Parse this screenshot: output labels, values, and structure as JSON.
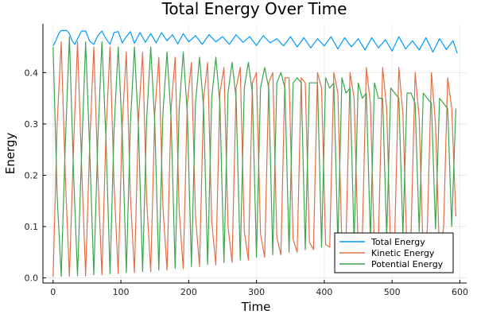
{
  "chart_data": {
    "type": "line",
    "title": "Total Energy Over Time",
    "xlabel": "Time",
    "ylabel": "Energy",
    "xlim": [
      -15,
      610
    ],
    "ylim": [
      -0.01,
      0.495
    ],
    "x_ticks": [
      0,
      100,
      200,
      300,
      400,
      500,
      600
    ],
    "x_tick_labels": [
      "0",
      "100",
      "200",
      "300",
      "400",
      "500",
      "600"
    ],
    "y_ticks": [
      0.0,
      0.1,
      0.2,
      0.3,
      0.4
    ],
    "y_tick_labels": [
      "0.0",
      "0.1",
      "0.2",
      "0.3",
      "0.4"
    ],
    "grid": true,
    "legend_position": "bottom-right",
    "series": [
      {
        "name": "Total Energy",
        "color": "#009AFA",
        "x": [
          0,
          4,
          8,
          12,
          16,
          20,
          24,
          28,
          32,
          36,
          42,
          48,
          54,
          60,
          66,
          72,
          78,
          84,
          90,
          96,
          102,
          108,
          114,
          120,
          128,
          136,
          144,
          152,
          160,
          168,
          176,
          184,
          192,
          200,
          210,
          220,
          230,
          240,
          250,
          260,
          270,
          280,
          290,
          300,
          310,
          320,
          330,
          340,
          350,
          360,
          370,
          380,
          390,
          400,
          410,
          420,
          430,
          440,
          450,
          460,
          470,
          480,
          490,
          500,
          510,
          520,
          530,
          540,
          550,
          560,
          570,
          580,
          590,
          596
        ],
        "y": [
          0.452,
          0.462,
          0.475,
          0.482,
          0.482,
          0.482,
          0.476,
          0.462,
          0.455,
          0.466,
          0.481,
          0.481,
          0.461,
          0.455,
          0.472,
          0.481,
          0.466,
          0.455,
          0.478,
          0.48,
          0.458,
          0.47,
          0.48,
          0.457,
          0.478,
          0.459,
          0.476,
          0.458,
          0.478,
          0.462,
          0.474,
          0.456,
          0.476,
          0.46,
          0.472,
          0.455,
          0.474,
          0.46,
          0.47,
          0.455,
          0.474,
          0.459,
          0.47,
          0.453,
          0.472,
          0.458,
          0.466,
          0.452,
          0.47,
          0.45,
          0.468,
          0.448,
          0.466,
          0.452,
          0.47,
          0.446,
          0.468,
          0.45,
          0.466,
          0.444,
          0.468,
          0.448,
          0.464,
          0.442,
          0.47,
          0.446,
          0.462,
          0.444,
          0.468,
          0.44,
          0.466,
          0.445,
          0.462,
          0.438
        ]
      },
      {
        "name": "Kinetic Energy",
        "color": "#E26F46",
        "x": [
          0,
          6,
          12,
          18,
          24,
          30,
          36,
          42,
          48,
          54,
          60,
          66,
          72,
          78,
          84,
          90,
          96,
          102,
          108,
          114,
          120,
          126,
          132,
          138,
          144,
          150,
          156,
          162,
          168,
          174,
          180,
          186,
          192,
          198,
          204,
          210,
          216,
          222,
          228,
          234,
          240,
          246,
          252,
          258,
          264,
          270,
          276,
          282,
          288,
          294,
          300,
          306,
          312,
          318,
          324,
          330,
          336,
          342,
          348,
          354,
          360,
          366,
          372,
          378,
          384,
          390,
          396,
          402,
          408,
          414,
          420,
          426,
          432,
          438,
          444,
          450,
          456,
          462,
          468,
          474,
          480,
          486,
          492,
          498,
          504,
          510,
          516,
          522,
          528,
          534,
          540,
          546,
          552,
          558,
          564,
          570,
          576,
          582,
          588,
          594
        ],
        "y": [
          0.002,
          0.3,
          0.46,
          0.2,
          0.003,
          0.25,
          0.46,
          0.22,
          0.004,
          0.26,
          0.45,
          0.2,
          0.006,
          0.28,
          0.45,
          0.18,
          0.008,
          0.3,
          0.44,
          0.16,
          0.01,
          0.31,
          0.44,
          0.15,
          0.012,
          0.32,
          0.43,
          0.14,
          0.015,
          0.33,
          0.43,
          0.13,
          0.018,
          0.34,
          0.42,
          0.12,
          0.022,
          0.35,
          0.42,
          0.11,
          0.025,
          0.36,
          0.41,
          0.1,
          0.03,
          0.37,
          0.41,
          0.09,
          0.035,
          0.38,
          0.4,
          0.085,
          0.04,
          0.38,
          0.4,
          0.08,
          0.045,
          0.39,
          0.39,
          0.075,
          0.05,
          0.39,
          0.38,
          0.07,
          0.055,
          0.4,
          0.37,
          0.065,
          0.06,
          0.4,
          0.36,
          0.06,
          0.07,
          0.4,
          0.35,
          0.055,
          0.075,
          0.41,
          0.34,
          0.05,
          0.08,
          0.41,
          0.33,
          0.045,
          0.085,
          0.41,
          0.32,
          0.045,
          0.09,
          0.4,
          0.31,
          0.04,
          0.095,
          0.4,
          0.3,
          0.04,
          0.1,
          0.39,
          0.33,
          0.12
        ]
      },
      {
        "name": "Potential Energy",
        "color": "#3EA44E",
        "x": [
          0,
          6,
          12,
          18,
          24,
          30,
          36,
          42,
          48,
          54,
          60,
          66,
          72,
          78,
          84,
          90,
          96,
          102,
          108,
          114,
          120,
          126,
          132,
          138,
          144,
          150,
          156,
          162,
          168,
          174,
          180,
          186,
          192,
          198,
          204,
          210,
          216,
          222,
          228,
          234,
          240,
          246,
          252,
          258,
          264,
          270,
          276,
          282,
          288,
          294,
          300,
          306,
          312,
          318,
          324,
          330,
          336,
          342,
          348,
          354,
          360,
          366,
          372,
          378,
          384,
          390,
          396,
          402,
          408,
          414,
          420,
          426,
          432,
          438,
          444,
          450,
          456,
          462,
          468,
          474,
          480,
          486,
          492,
          498,
          504,
          510,
          516,
          522,
          528,
          534,
          540,
          546,
          552,
          558,
          564,
          570,
          576,
          582,
          588,
          594
        ],
        "y": [
          0.45,
          0.16,
          0.003,
          0.26,
          0.47,
          0.21,
          0.004,
          0.24,
          0.46,
          0.25,
          0.006,
          0.27,
          0.46,
          0.27,
          0.008,
          0.29,
          0.45,
          0.28,
          0.01,
          0.3,
          0.45,
          0.29,
          0.012,
          0.31,
          0.45,
          0.3,
          0.015,
          0.32,
          0.44,
          0.31,
          0.018,
          0.33,
          0.44,
          0.32,
          0.022,
          0.34,
          0.43,
          0.33,
          0.026,
          0.35,
          0.43,
          0.34,
          0.03,
          0.36,
          0.42,
          0.35,
          0.035,
          0.37,
          0.42,
          0.36,
          0.04,
          0.37,
          0.41,
          0.37,
          0.045,
          0.38,
          0.4,
          0.37,
          0.05,
          0.38,
          0.39,
          0.38,
          0.055,
          0.38,
          0.38,
          0.38,
          0.06,
          0.39,
          0.37,
          0.38,
          0.065,
          0.39,
          0.36,
          0.37,
          0.07,
          0.38,
          0.35,
          0.36,
          0.075,
          0.38,
          0.35,
          0.35,
          0.08,
          0.37,
          0.36,
          0.35,
          0.085,
          0.36,
          0.36,
          0.34,
          0.09,
          0.36,
          0.35,
          0.34,
          0.095,
          0.35,
          0.34,
          0.33,
          0.1,
          0.33
        ]
      }
    ]
  }
}
